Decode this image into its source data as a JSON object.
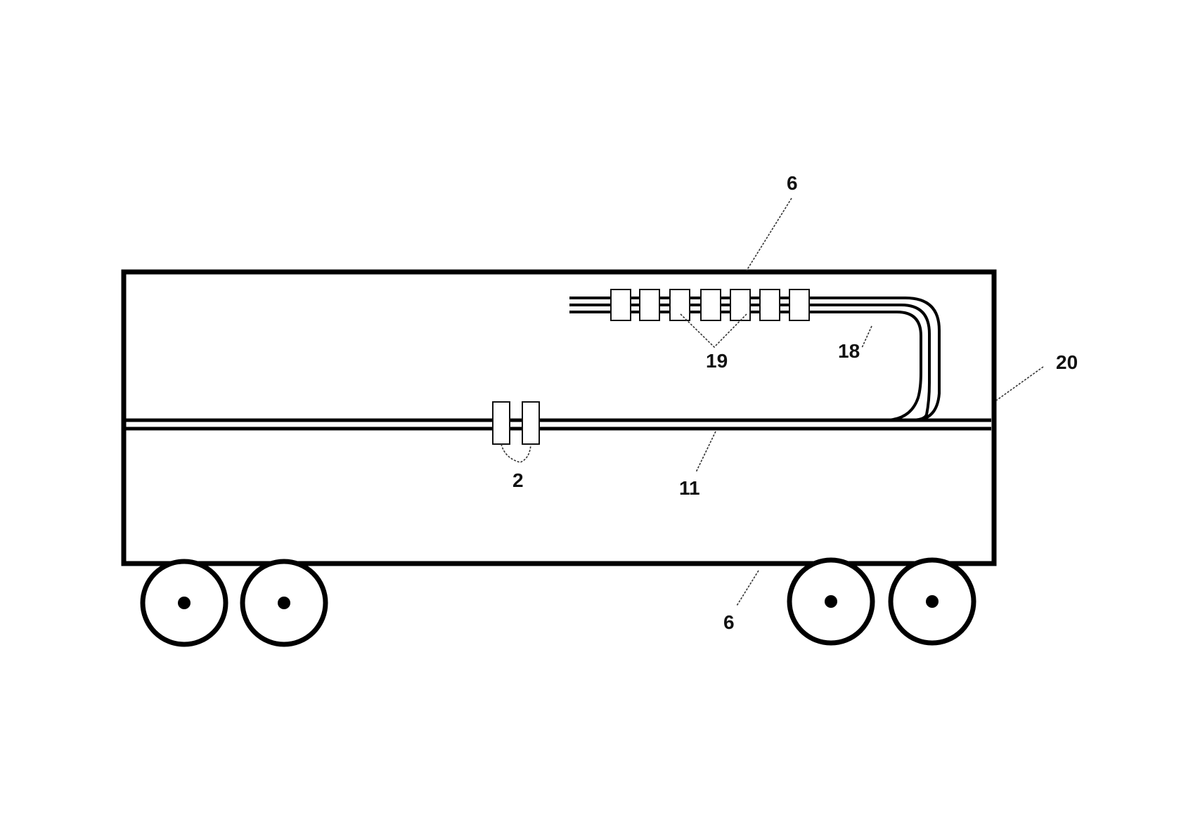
{
  "figure": {
    "labels": {
      "housing_top": "6",
      "housing_bottom": "6",
      "coils_upper": "19",
      "loop_conduit": "18",
      "vehicle": "20",
      "coils_lower": "2",
      "main_conduit": "11"
    },
    "colors": {
      "line": "#000000",
      "background": "#ffffff",
      "leader": "#333333"
    }
  }
}
